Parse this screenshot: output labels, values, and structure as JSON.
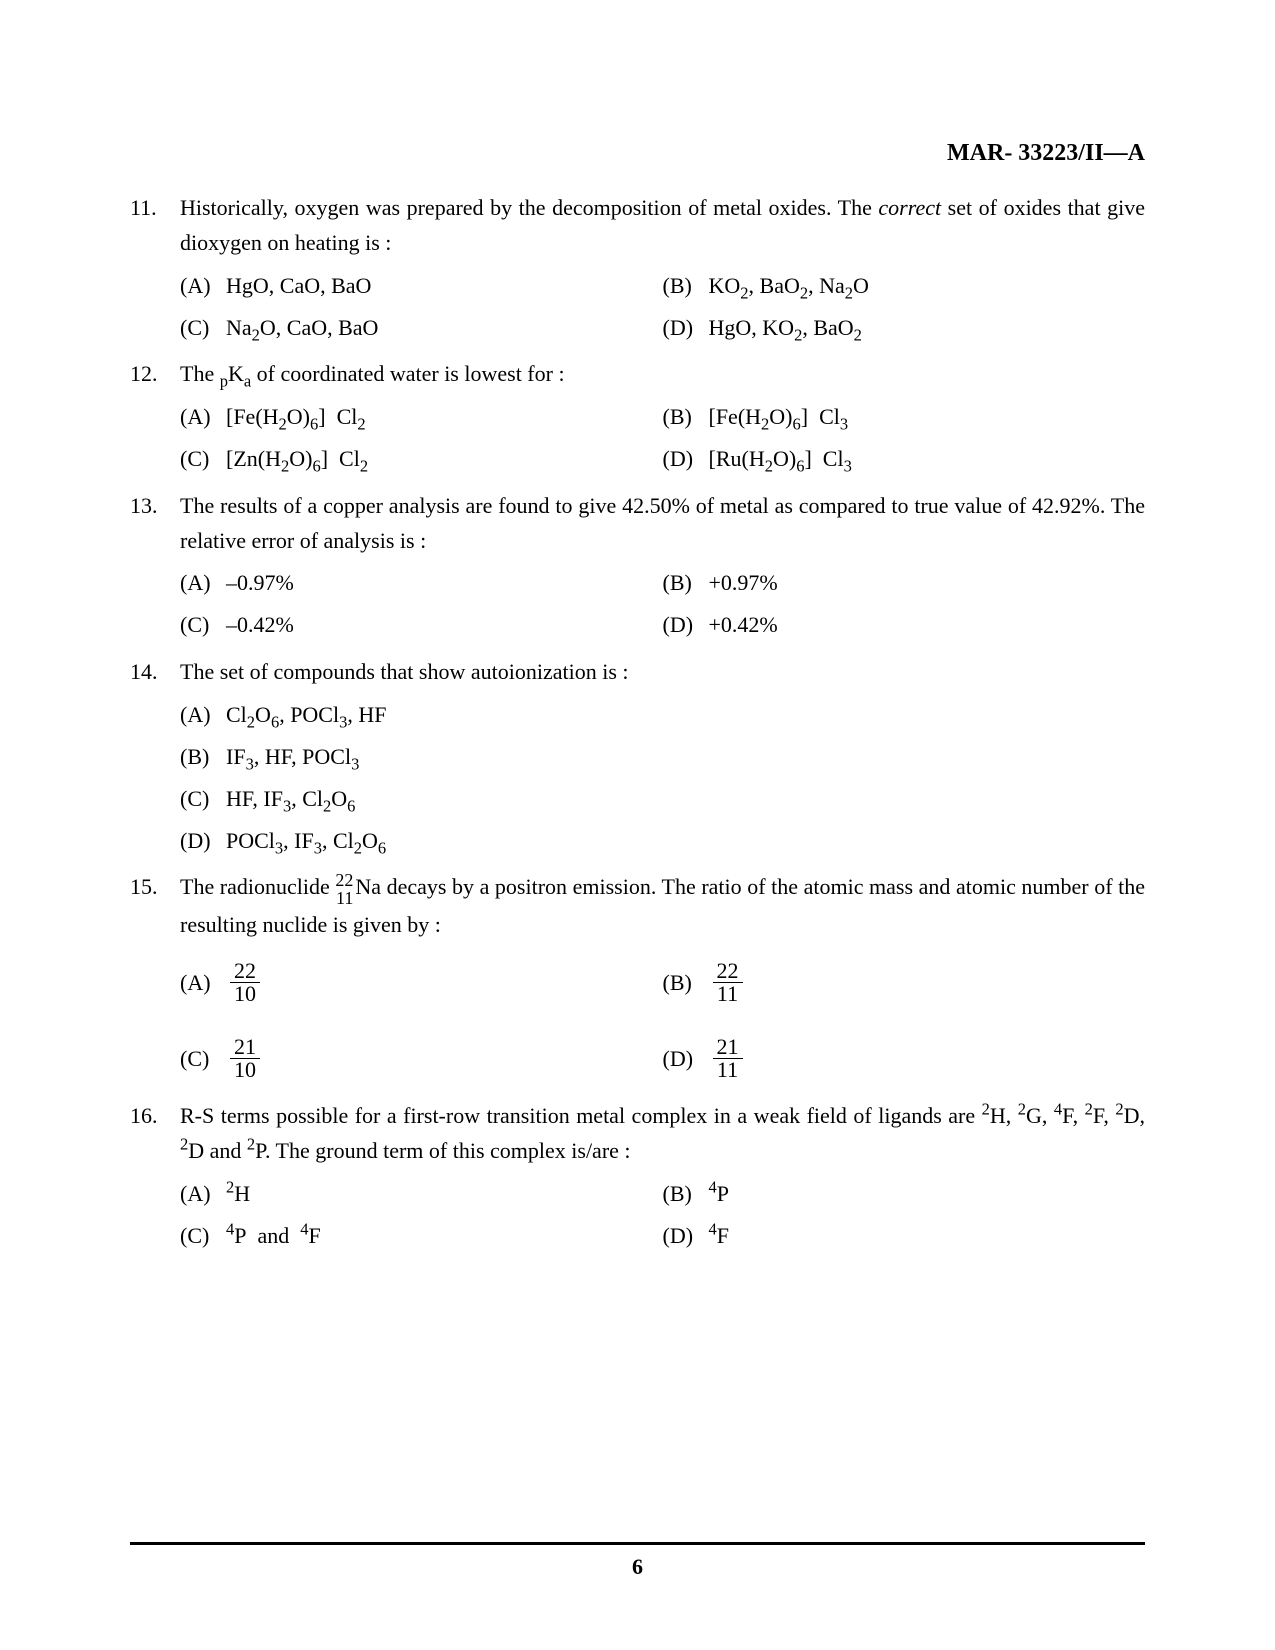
{
  "header": {
    "code": "MAR- 33223/II—A"
  },
  "page_number": "6",
  "questions": [
    {
      "num": "11.",
      "text": "Historically, oxygen was prepared by the decomposition of metal oxides. The <span class=\"italic\">correct</span> set of oxides that give dioxygen on heating is :",
      "layout": "grid",
      "options": [
        {
          "label": "(A)",
          "text": "HgO, CaO, BaO"
        },
        {
          "label": "(B)",
          "text": "KO<sub>2</sub>, BaO<sub>2</sub>, Na<sub>2</sub>O"
        },
        {
          "label": "(C)",
          "text": "Na<sub>2</sub>O, CaO, BaO"
        },
        {
          "label": "(D)",
          "text": "HgO, KO<sub>2</sub>, BaO<sub>2</sub>"
        }
      ]
    },
    {
      "num": "12.",
      "text": "The <sub>p</sub>K<sub>a</sub> of coordinated water is lowest for :",
      "layout": "grid",
      "options": [
        {
          "label": "(A)",
          "text": "[Fe(H<sub>2</sub>O)<sub>6</sub>]&nbsp; Cl<sub>2</sub>"
        },
        {
          "label": "(B)",
          "text": "[Fe(H<sub>2</sub>O)<sub>6</sub>]&nbsp; Cl<sub>3</sub>"
        },
        {
          "label": "(C)",
          "text": "[Zn(H<sub>2</sub>O)<sub>6</sub>]&nbsp; Cl<sub>2</sub>"
        },
        {
          "label": "(D)",
          "text": "[Ru(H<sub>2</sub>O)<sub>6</sub>]&nbsp; Cl<sub>3</sub>"
        }
      ]
    },
    {
      "num": "13.",
      "text": "The results of a copper analysis are found to give 42.50% of metal as compared to true value of 42.92%. The relative error of analysis is :",
      "layout": "grid",
      "options": [
        {
          "label": "(A)",
          "text": "–0.97%"
        },
        {
          "label": "(B)",
          "text": "+0.97%"
        },
        {
          "label": "(C)",
          "text": "–0.42%"
        },
        {
          "label": "(D)",
          "text": "+0.42%"
        }
      ]
    },
    {
      "num": "14.",
      "text": "The set of compounds that show autoionization is :",
      "layout": "col",
      "options": [
        {
          "label": "(A)",
          "text": "Cl<sub>2</sub>O<sub>6</sub>, POCl<sub>3</sub>, HF"
        },
        {
          "label": "(B)",
          "text": "IF<sub>3</sub>, HF, POCl<sub>3</sub>"
        },
        {
          "label": "(C)",
          "text": "HF, IF<sub>3</sub>, Cl<sub>2</sub>O<sub>6</sub>"
        },
        {
          "label": "(D)",
          "text": "POCl<sub>3</sub>, IF<sub>3</sub>, Cl<sub>2</sub>O<sub>6</sub>"
        }
      ]
    },
    {
      "num": "15.",
      "text": "The radionuclide <span class=\"nuclide\"><span class=\"top\">22</span><span class=\"bot\">11</span></span>Na decays by a positron emission. The ratio of the atomic mass and atomic number of the resulting nuclide is given by :",
      "layout": "q15",
      "options": [
        {
          "label": "(A)",
          "text": "<span class=\"frac\"><span class=\"num\">22</span><span class=\"den\">10</span></span>"
        },
        {
          "label": "(B)",
          "text": "<span class=\"frac\"><span class=\"num\">22</span><span class=\"den\">11</span></span>"
        },
        {
          "label": "(C)",
          "text": "<span class=\"frac\"><span class=\"num\">21</span><span class=\"den\">10</span></span>"
        },
        {
          "label": "(D)",
          "text": "<span class=\"frac\"><span class=\"num\">21</span><span class=\"den\">11</span></span>"
        }
      ]
    },
    {
      "num": "16.",
      "text": "R-S terms possible for a first-row transition metal complex in a weak field of ligands are <sup>2</sup>H, <sup>2</sup>G, <sup>4</sup>F, <sup>2</sup>F, <sup>2</sup>D, <sup>2</sup>D and <sup>2</sup>P. The ground term of this complex is/are :",
      "layout": "grid",
      "options": [
        {
          "label": "(A)",
          "text": "<sup>2</sup>H"
        },
        {
          "label": "(B)",
          "text": "<sup>4</sup>P"
        },
        {
          "label": "(C)",
          "text": "<sup>4</sup>P&nbsp; and&nbsp; <sup>4</sup>F"
        },
        {
          "label": "(D)",
          "text": "<sup>4</sup>F"
        }
      ]
    }
  ]
}
